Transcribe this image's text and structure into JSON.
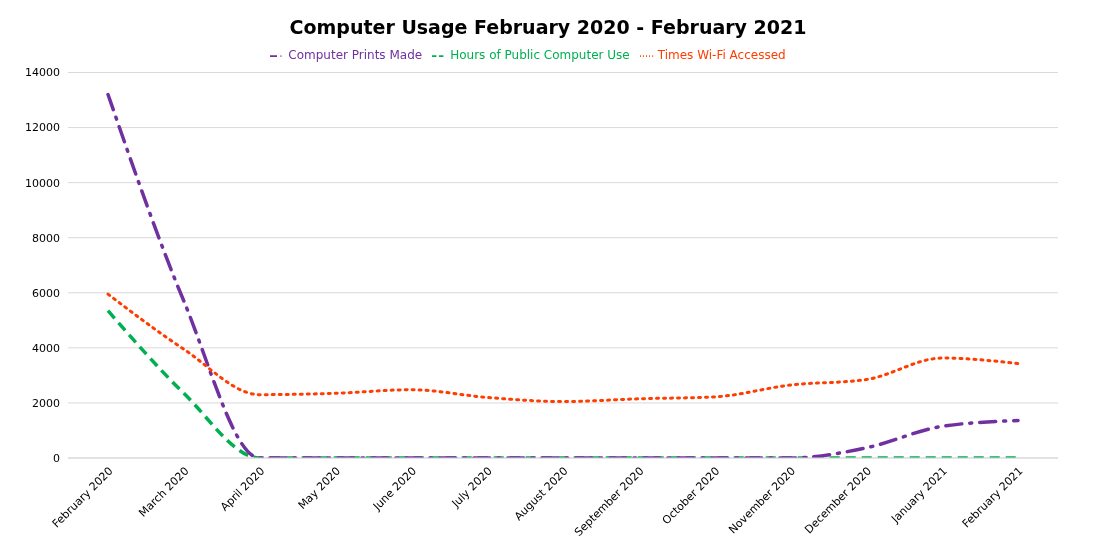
{
  "chart_data": {
    "type": "line",
    "title": "Computer Usage February 2020 - February 2021",
    "categories": [
      "February 2020",
      "March 2020",
      "April 2020",
      "May 2020",
      "June 2020",
      "July 2020",
      "August 2020",
      "September 2020",
      "October 2020",
      "November 2020",
      "December 2020",
      "January 2021",
      "February 2021"
    ],
    "series": [
      {
        "name": "Hours of Public Computer Use",
        "color": "#00b050",
        "line_style": "dashed",
        "values": [
          5350,
          2350,
          0,
          0,
          0,
          0,
          0,
          0,
          0,
          0,
          0,
          0,
          0
        ]
      },
      {
        "name": "Computer Prints Made",
        "color": "#7030a0",
        "line_style": "dashdot",
        "values": [
          13200,
          5700,
          0,
          0,
          0,
          0,
          0,
          0,
          0,
          0,
          370,
          1150,
          1360
        ]
      },
      {
        "name": "Times Wi-Fi Accessed",
        "color": "#ff3d00",
        "line_style": "dotted",
        "values": [
          5950,
          3950,
          2300,
          2350,
          2480,
          2200,
          2050,
          2150,
          2220,
          2650,
          2850,
          3630,
          3430
        ]
      }
    ],
    "ylim": [
      0,
      14000
    ],
    "yticks": [
      0,
      2000,
      4000,
      6000,
      8000,
      10000,
      12000,
      14000
    ],
    "grid": "y",
    "legend": "top",
    "marker": "none"
  }
}
